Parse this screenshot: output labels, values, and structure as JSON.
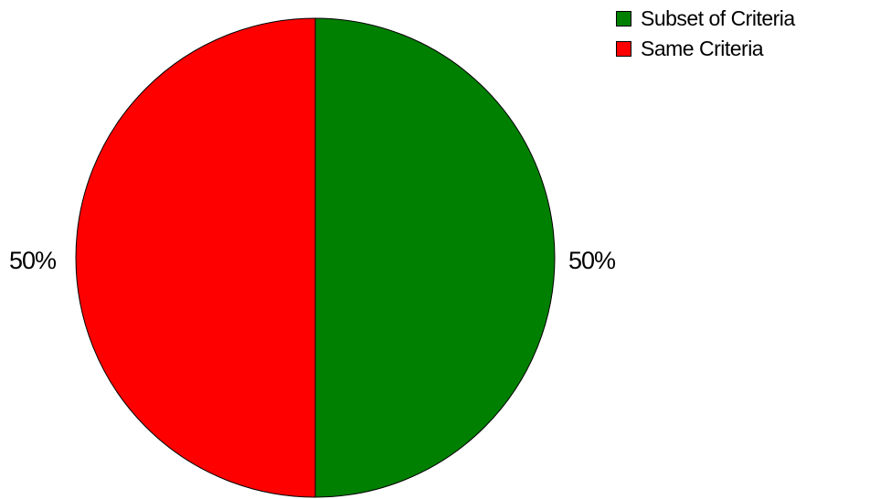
{
  "chart_data": {
    "type": "pie",
    "title": "",
    "slices": [
      {
        "name": "Subset of Criteria",
        "value": 50,
        "label": "50%",
        "color": "#008000"
      },
      {
        "name": "Same Criteria",
        "value": 50,
        "label": "50%",
        "color": "#ff0000"
      }
    ],
    "legend_position": "top-right",
    "start_angle": "12 o'clock",
    "direction": "clockwise"
  }
}
